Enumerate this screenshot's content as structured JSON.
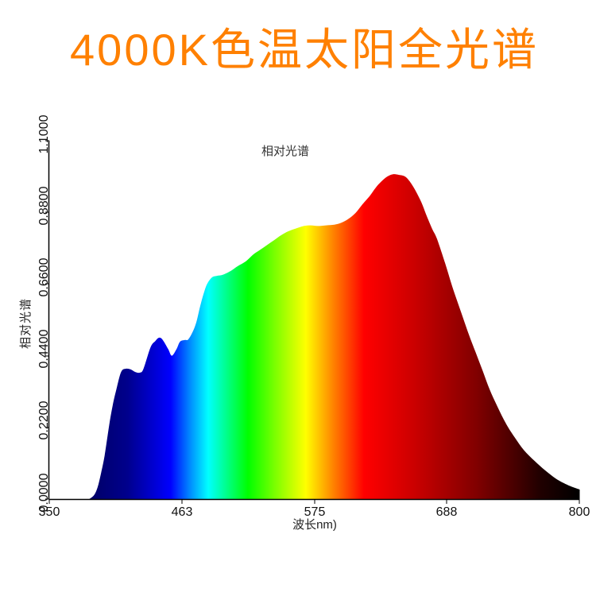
{
  "title": "4000K色温太阳全光谱",
  "colors": {
    "title": "#ff8000",
    "axis": "#000000",
    "background": "#ffffff"
  },
  "chart_data": {
    "type": "area",
    "title": "相对光谱",
    "xlabel": "波长nm)",
    "ylabel": "相对光谱",
    "xlim": [
      350,
      800
    ],
    "ylim": [
      0,
      1.1
    ],
    "grid": false,
    "legend": null,
    "x_ticks": [
      "350",
      "463",
      "575",
      "688",
      "800"
    ],
    "y_ticks": [
      "0.0000",
      "0.2200",
      "0.4400",
      "0.6600",
      "0.8800",
      "1.1000"
    ],
    "fill": "visible-spectrum color gradient",
    "gradient": [
      {
        "offset": "0%",
        "color": "#000066"
      },
      {
        "offset": "7.6%",
        "color": "#000066"
      },
      {
        "offset": "14.7%",
        "color": "#00008c"
      },
      {
        "offset": "22.9%",
        "color": "#0000ff"
      },
      {
        "offset": "26.7%",
        "color": "#0090ff"
      },
      {
        "offset": "30%",
        "color": "#00ffff"
      },
      {
        "offset": "37.5%",
        "color": "#00ff00"
      },
      {
        "offset": "42.4%",
        "color": "#77ff00"
      },
      {
        "offset": "48.4%",
        "color": "#ffff00"
      },
      {
        "offset": "53.7%",
        "color": "#ff8000"
      },
      {
        "offset": "59.4%",
        "color": "#ff0000"
      },
      {
        "offset": "68.7%",
        "color": "#cc0000"
      },
      {
        "offset": "80.7%",
        "color": "#800000"
      },
      {
        "offset": "92.7%",
        "color": "#200000"
      },
      {
        "offset": "100%",
        "color": "#000000"
      }
    ],
    "x": [
      384,
      388,
      391,
      394,
      397,
      401,
      404,
      407,
      411,
      415,
      419,
      423,
      427,
      430,
      436,
      440,
      443,
      446,
      451,
      454,
      458,
      461,
      465,
      468,
      472,
      475,
      478,
      481,
      484,
      488,
      492,
      497,
      504,
      510,
      517,
      523,
      529,
      535,
      541,
      547,
      553,
      559,
      566,
      572,
      578,
      585,
      592,
      598,
      604,
      610,
      616,
      622,
      627,
      632,
      637,
      642,
      647,
      652,
      656,
      661,
      666,
      670,
      675,
      679,
      686,
      692,
      699,
      706,
      712,
      718,
      724,
      731,
      738,
      745,
      753,
      762,
      771,
      780,
      789,
      795,
      800
    ],
    "values": [
      0.0,
      0.012,
      0.036,
      0.08,
      0.134,
      0.23,
      0.29,
      0.337,
      0.39,
      0.4,
      0.398,
      0.39,
      0.388,
      0.4,
      0.466,
      0.485,
      0.495,
      0.49,
      0.46,
      0.44,
      0.46,
      0.483,
      0.488,
      0.49,
      0.515,
      0.545,
      0.59,
      0.63,
      0.66,
      0.68,
      0.685,
      0.688,
      0.7,
      0.715,
      0.73,
      0.75,
      0.765,
      0.78,
      0.795,
      0.81,
      0.822,
      0.83,
      0.838,
      0.84,
      0.838,
      0.84,
      0.842,
      0.848,
      0.86,
      0.878,
      0.905,
      0.93,
      0.955,
      0.975,
      0.99,
      0.997,
      0.995,
      0.99,
      0.975,
      0.946,
      0.91,
      0.873,
      0.83,
      0.8,
      0.725,
      0.654,
      0.58,
      0.507,
      0.45,
      0.393,
      0.335,
      0.28,
      0.23,
      0.19,
      0.15,
      0.117,
      0.088,
      0.063,
      0.045,
      0.036,
      0.03
    ]
  }
}
